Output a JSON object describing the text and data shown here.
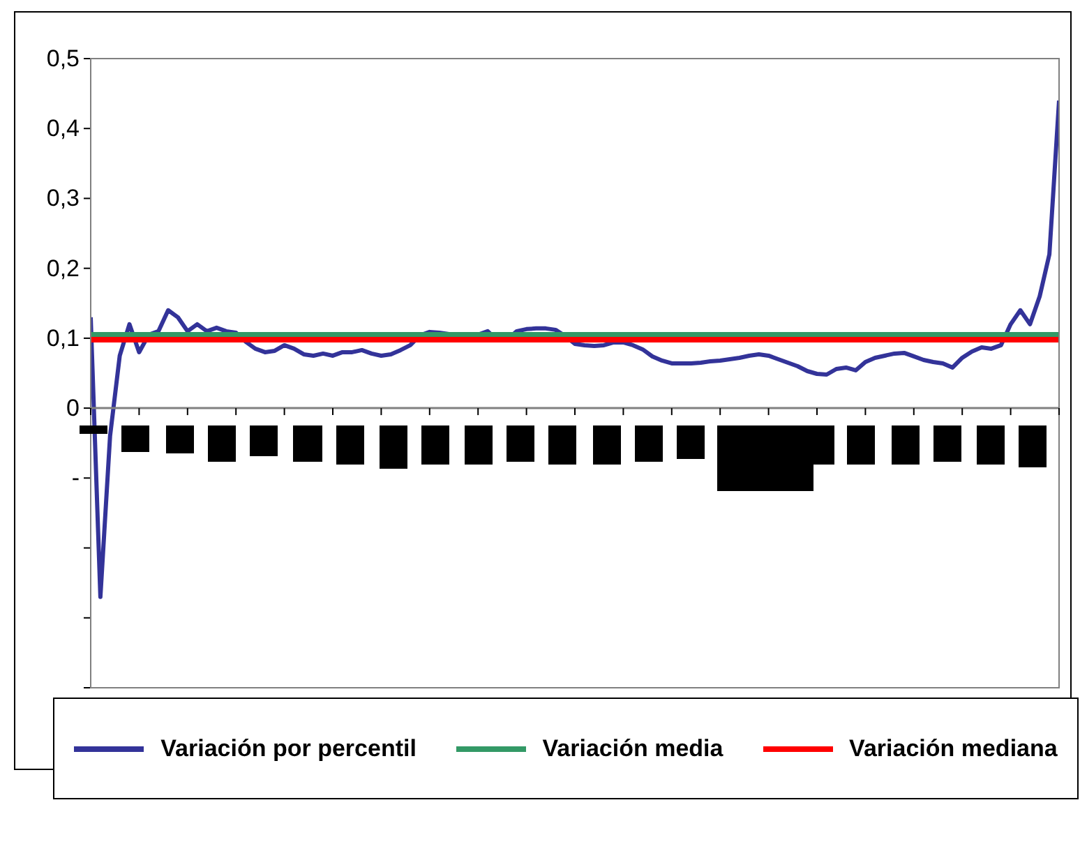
{
  "chart_data": {
    "type": "line",
    "legend": "bottom",
    "marker": "none",
    "tick_labels": "y",
    "categories": [
      null,
      null,
      null,
      null,
      null,
      null,
      null,
      null,
      null,
      null,
      null,
      null,
      null,
      null,
      null,
      null,
      null,
      null,
      null,
      null,
      null,
      null,
      null,
      null,
      null,
      null,
      null,
      null,
      null,
      null,
      null,
      null,
      null,
      null,
      null,
      null,
      null,
      null,
      null,
      null,
      null,
      null,
      null,
      null,
      null,
      null,
      null,
      null,
      null,
      null,
      null,
      null,
      null,
      null,
      null,
      null,
      null,
      null,
      null,
      null,
      null,
      null,
      null,
      null,
      null,
      null,
      null,
      null,
      null,
      null,
      null,
      null,
      null,
      null,
      null,
      null,
      null,
      null,
      null,
      null,
      null,
      null,
      null,
      null,
      null,
      null,
      null,
      null,
      null,
      null,
      null,
      null,
      null,
      null,
      null,
      null,
      null,
      null,
      null,
      null,
      null
    ],
    "ylim": [
      -0.4,
      0.5
    ],
    "yticks": [
      {
        "value": -0.4,
        "label": null
      },
      {
        "value": -0.3,
        "label": null
      },
      {
        "value": -0.2,
        "label": null
      },
      {
        "value": -0.1,
        "label": "-"
      },
      0,
      {
        "value": 0.1,
        "label": "0,1"
      },
      {
        "value": 0.2,
        "label": "0,2"
      },
      {
        "value": 0.3,
        "label": "0,3"
      },
      {
        "value": 0.4,
        "label": "0,4"
      },
      {
        "value": 0.5,
        "label": "0,5"
      }
    ],
    "series": [
      {
        "name": "Variación por percentil",
        "color": "#333399",
        "values": [
          0.13,
          -0.27,
          -0.04,
          0.075,
          0.12,
          0.08,
          0.105,
          0.11,
          0.14,
          0.13,
          0.11,
          0.12,
          0.11,
          0.115,
          0.11,
          0.108,
          0.095,
          0.085,
          0.08,
          0.082,
          0.09,
          0.085,
          0.077,
          0.075,
          0.078,
          0.075,
          0.08,
          0.08,
          0.083,
          0.078,
          0.075,
          0.077,
          0.083,
          0.09,
          0.104,
          0.109,
          0.108,
          0.106,
          0.105,
          0.105,
          0.105,
          0.11,
          0.097,
          0.098,
          0.11,
          0.113,
          0.114,
          0.114,
          0.112,
          0.103,
          0.092,
          0.09,
          0.089,
          0.09,
          0.094,
          0.094,
          0.09,
          0.084,
          0.074,
          0.068,
          0.064,
          0.064,
          0.064,
          0.065,
          0.067,
          0.068,
          0.07,
          0.072,
          0.075,
          0.077,
          0.075,
          0.07,
          0.065,
          0.06,
          0.053,
          0.049,
          0.048,
          0.056,
          0.058,
          0.054,
          0.066,
          0.072,
          0.075,
          0.078,
          0.079,
          0.074,
          0.069,
          0.066,
          0.064,
          0.058,
          0.072,
          0.081,
          0.087,
          0.085,
          0.09,
          0.12,
          0.14,
          0.12,
          0.16,
          0.22,
          0.44
        ]
      },
      {
        "name": "Variación media",
        "color": "#339966",
        "values": [
          0.105,
          0.105,
          0.105,
          0.105,
          0.105,
          0.105,
          0.105,
          0.105,
          0.105,
          0.105,
          0.105,
          0.105,
          0.105,
          0.105,
          0.105,
          0.105,
          0.105,
          0.105,
          0.105,
          0.105,
          0.105,
          0.105,
          0.105,
          0.105,
          0.105,
          0.105,
          0.105,
          0.105,
          0.105,
          0.105,
          0.105,
          0.105,
          0.105,
          0.105,
          0.105,
          0.105,
          0.105,
          0.105,
          0.105,
          0.105,
          0.105,
          0.105,
          0.105,
          0.105,
          0.105,
          0.105,
          0.105,
          0.105,
          0.105,
          0.105,
          0.105,
          0.105,
          0.105,
          0.105,
          0.105,
          0.105,
          0.105,
          0.105,
          0.105,
          0.105,
          0.105,
          0.105,
          0.105,
          0.105,
          0.105,
          0.105,
          0.105,
          0.105,
          0.105,
          0.105,
          0.105,
          0.105,
          0.105,
          0.105,
          0.105,
          0.105,
          0.105,
          0.105,
          0.105,
          0.105,
          0.105,
          0.105,
          0.105,
          0.105,
          0.105,
          0.105,
          0.105,
          0.105,
          0.105,
          0.105,
          0.105,
          0.105,
          0.105,
          0.105,
          0.105,
          0.105,
          0.105,
          0.105,
          0.105,
          0.105,
          0.105
        ]
      },
      {
        "name": "Variación mediana",
        "color": "#ff0000",
        "values": [
          0.098,
          0.098,
          0.098,
          0.098,
          0.098,
          0.098,
          0.098,
          0.098,
          0.098,
          0.098,
          0.098,
          0.098,
          0.098,
          0.098,
          0.098,
          0.098,
          0.098,
          0.098,
          0.098,
          0.098,
          0.098,
          0.098,
          0.098,
          0.098,
          0.098,
          0.098,
          0.098,
          0.098,
          0.098,
          0.098,
          0.098,
          0.098,
          0.098,
          0.098,
          0.098,
          0.098,
          0.098,
          0.098,
          0.098,
          0.098,
          0.098,
          0.098,
          0.098,
          0.098,
          0.098,
          0.098,
          0.098,
          0.098,
          0.098,
          0.098,
          0.098,
          0.098,
          0.098,
          0.098,
          0.098,
          0.098,
          0.098,
          0.098,
          0.098,
          0.098,
          0.098,
          0.098,
          0.098,
          0.098,
          0.098,
          0.098,
          0.098,
          0.098,
          0.098,
          0.098,
          0.098,
          0.098,
          0.098,
          0.098,
          0.098,
          0.098,
          0.098,
          0.098,
          0.098,
          0.098,
          0.098,
          0.098,
          0.098,
          0.098,
          0.098,
          0.098,
          0.098,
          0.098,
          0.098,
          0.098,
          0.098,
          0.098,
          0.098,
          0.098,
          0.098,
          0.098,
          0.098,
          0.098,
          0.098,
          0.098,
          0.098
        ]
      }
    ]
  }
}
